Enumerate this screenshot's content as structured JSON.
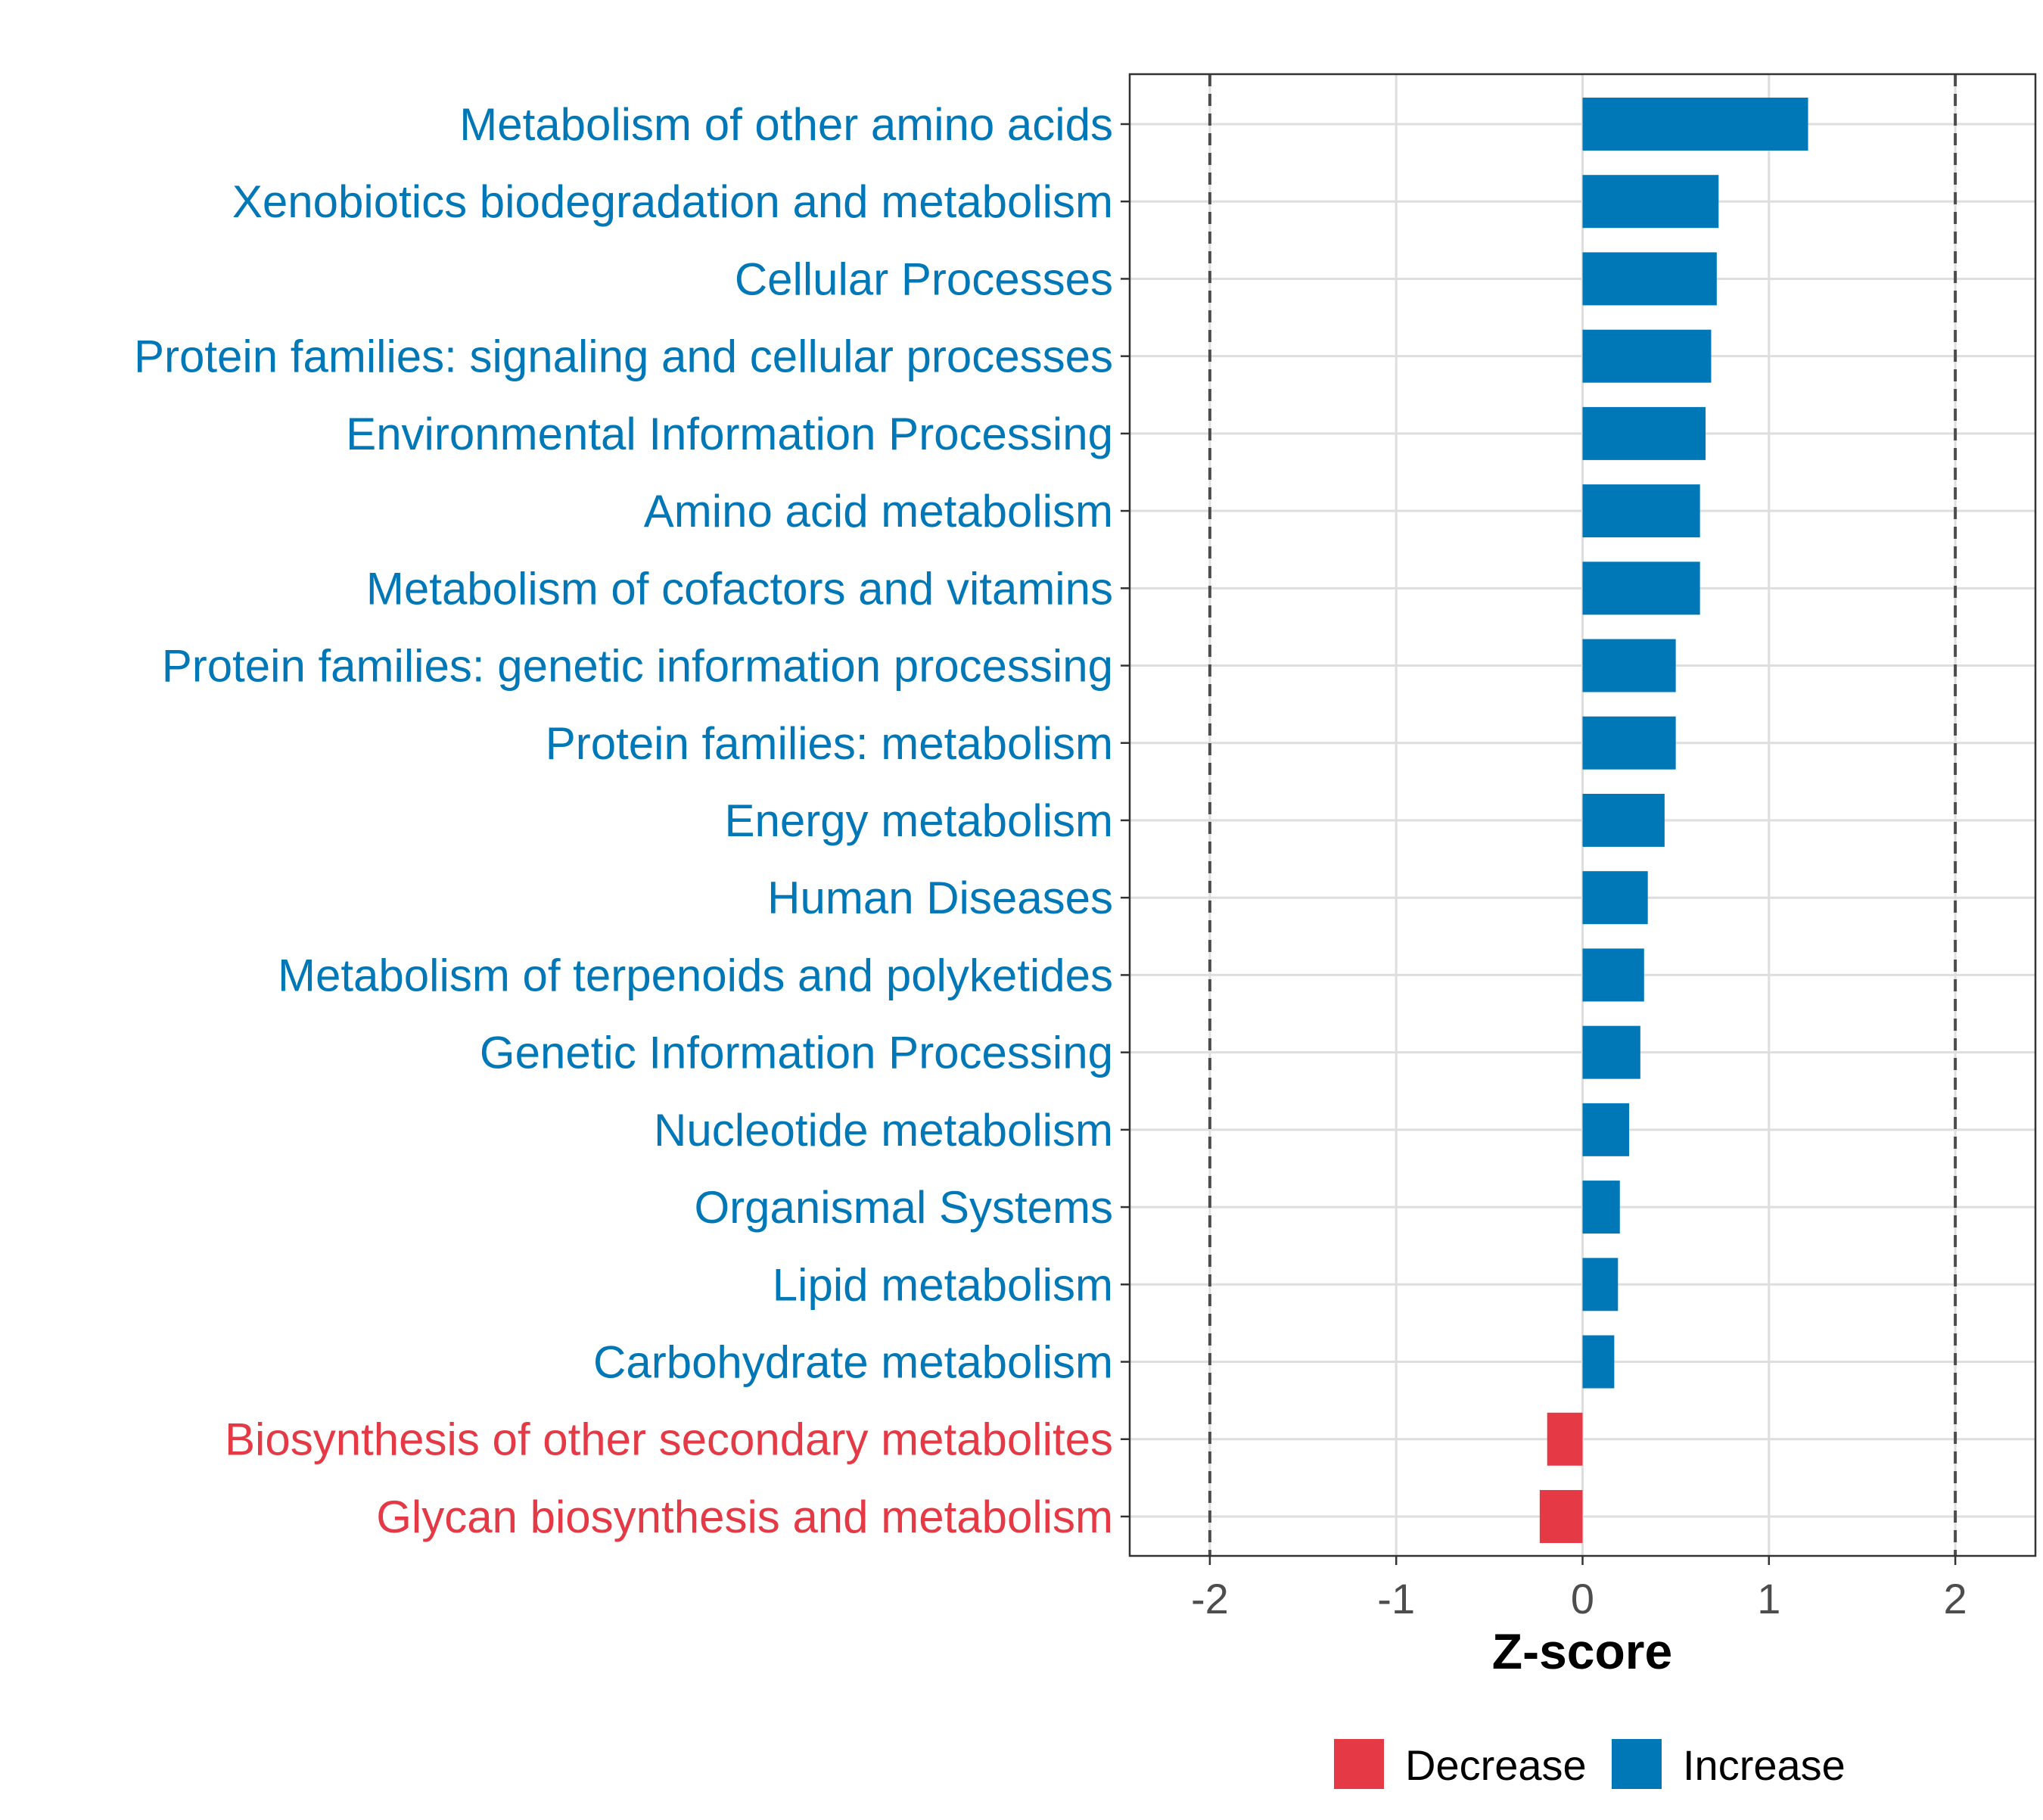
{
  "chart_data": {
    "type": "bar",
    "orientation": "horizontal",
    "xlabel": "Z-score",
    "xlim": [
      -2.43,
      2.43
    ],
    "xticks": [
      -2,
      -1,
      0,
      1,
      2
    ],
    "xtick_labels": [
      "-2",
      "-1",
      "0",
      "1",
      "2"
    ],
    "reference_lines": [
      -2,
      2
    ],
    "grid": true,
    "colors": {
      "Increase": "#0077B6",
      "Decrease": "#E63946"
    },
    "categories": [
      "Metabolism of other amino acids",
      "Xenobiotics biodegradation and metabolism",
      "Cellular Processes",
      "Protein families: signaling and cellular processes",
      "Environmental Information Processing",
      "Amino acid metabolism",
      "Metabolism of cofactors and vitamins",
      "Protein families: genetic information processing",
      "Protein families: metabolism",
      "Energy metabolism",
      "Human Diseases",
      "Metabolism of terpenoids and polyketides",
      "Genetic Information Processing",
      "Nucleotide metabolism",
      "Organismal Systems",
      "Lipid metabolism",
      "Carbohydrate metabolism",
      "Biosynthesis of other secondary metabolites",
      "Glycan biosynthesis and metabolism"
    ],
    "values": [
      1.21,
      0.73,
      0.72,
      0.69,
      0.66,
      0.63,
      0.63,
      0.5,
      0.5,
      0.44,
      0.35,
      0.33,
      0.31,
      0.25,
      0.2,
      0.19,
      0.17,
      -0.19,
      -0.23
    ],
    "groups": [
      "Increase",
      "Increase",
      "Increase",
      "Increase",
      "Increase",
      "Increase",
      "Increase",
      "Increase",
      "Increase",
      "Increase",
      "Increase",
      "Increase",
      "Increase",
      "Increase",
      "Increase",
      "Increase",
      "Increase",
      "Decrease",
      "Decrease"
    ],
    "legend": {
      "position": "bottom",
      "entries": [
        "Decrease",
        "Increase"
      ]
    }
  }
}
